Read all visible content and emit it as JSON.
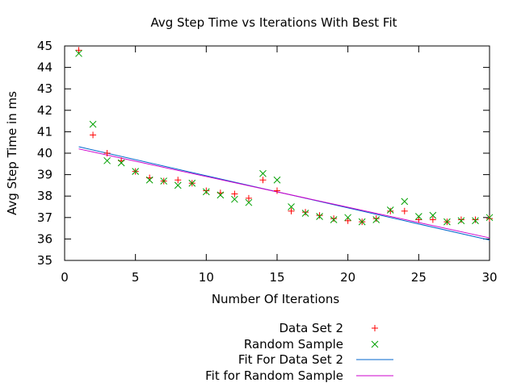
{
  "chart_data": {
    "type": "scatter",
    "title": "Avg Step Time vs Iterations With Best Fit",
    "xlabel": "Number Of Iterations",
    "ylabel": "Avg Step Time in ms",
    "xlim": [
      0,
      30
    ],
    "ylim": [
      35,
      45
    ],
    "xticks": [
      "0",
      "5",
      "10",
      "15",
      "20",
      "25",
      "30"
    ],
    "yticks": [
      "35",
      "36",
      "37",
      "38",
      "39",
      "40",
      "41",
      "42",
      "43",
      "44",
      "45"
    ],
    "grid": false,
    "legend_position": "bottom-right, below plot",
    "x": [
      1,
      2,
      3,
      4,
      5,
      6,
      7,
      8,
      9,
      10,
      11,
      12,
      13,
      14,
      15,
      16,
      17,
      18,
      19,
      20,
      21,
      22,
      23,
      24,
      25,
      26,
      27,
      28,
      29,
      30
    ],
    "series": [
      {
        "name": "Data Set 2",
        "kind": "points",
        "marker": "plus",
        "color": "#ff0000",
        "values": [
          44.8,
          40.85,
          40.0,
          39.65,
          39.15,
          38.85,
          38.7,
          38.75,
          38.6,
          38.25,
          38.15,
          38.1,
          37.9,
          38.75,
          38.25,
          37.3,
          37.25,
          37.1,
          36.95,
          36.85,
          36.8,
          36.95,
          37.3,
          37.3,
          36.9,
          36.9,
          36.8,
          36.9,
          36.9,
          36.95
        ]
      },
      {
        "name": "Random Sample",
        "kind": "points",
        "marker": "cross",
        "color": "#00a000",
        "values": [
          44.65,
          41.35,
          39.65,
          39.55,
          39.15,
          38.75,
          38.7,
          38.5,
          38.6,
          38.2,
          38.05,
          37.85,
          37.7,
          39.05,
          38.75,
          37.5,
          37.2,
          37.05,
          36.9,
          37.0,
          36.8,
          36.9,
          37.35,
          37.75,
          37.05,
          37.1,
          36.8,
          36.85,
          36.85,
          37.0
        ]
      },
      {
        "name": "Fit For Data Set 2",
        "kind": "line",
        "color": "#0066cc",
        "start": [
          1,
          40.3
        ],
        "end": [
          30,
          35.95
        ]
      },
      {
        "name": "Fit for Random Sample",
        "kind": "line",
        "color": "#cc00cc",
        "start": [
          1,
          40.2
        ],
        "end": [
          30,
          36.05
        ]
      }
    ]
  }
}
